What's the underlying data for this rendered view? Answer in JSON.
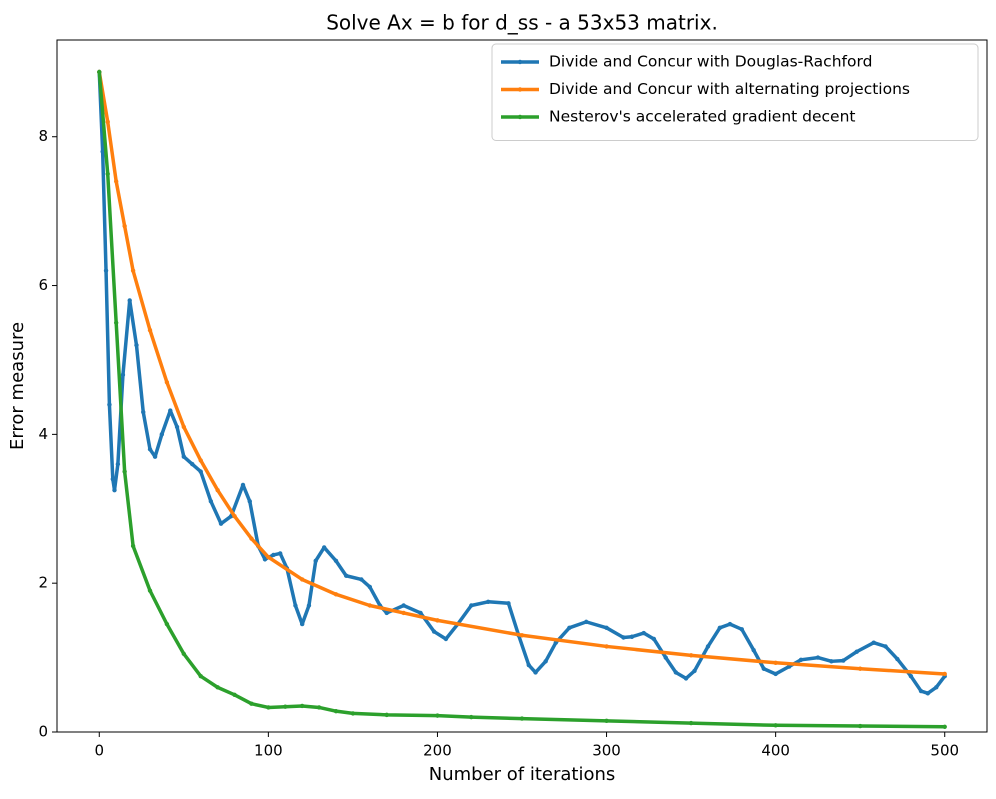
{
  "chart_data": {
    "type": "line",
    "title": "Solve Ax = b for d_ss - a 53x53 matrix.",
    "x_label": "Number of iterations",
    "y_label": "Error measure",
    "xlim": [
      -25,
      525
    ],
    "ylim": [
      0,
      9.3
    ],
    "xticks": [
      0,
      100,
      200,
      300,
      400,
      500
    ],
    "yticks": [
      0,
      2,
      4,
      6,
      8
    ],
    "grid": false,
    "legend": "upper right",
    "series": [
      {
        "name": "Divide and Concur with Douglas-Rachford",
        "color": "#1f77b4",
        "x": [
          0,
          2,
          4,
          6,
          8,
          9,
          11,
          14,
          18,
          22,
          26,
          30,
          33,
          37,
          42,
          46,
          50,
          55,
          60,
          66,
          72,
          78,
          85,
          89,
          94,
          98,
          103,
          107,
          111,
          116,
          120,
          124,
          128,
          133,
          140,
          146,
          155,
          160,
          166,
          170,
          180,
          190,
          198,
          205,
          212,
          220,
          230,
          242,
          248,
          254,
          258,
          264,
          270,
          278,
          288,
          300,
          310,
          315,
          322,
          328,
          335,
          341,
          347,
          352,
          360,
          367,
          373,
          380,
          387,
          393,
          400,
          408,
          415,
          425,
          433,
          440,
          448,
          458,
          465,
          472,
          480,
          486,
          490,
          495,
          500
        ],
        "values": [
          8.87,
          7.8,
          6.2,
          4.4,
          3.4,
          3.25,
          3.6,
          4.8,
          5.8,
          5.2,
          4.3,
          3.8,
          3.7,
          4.0,
          4.32,
          4.1,
          3.7,
          3.6,
          3.5,
          3.1,
          2.8,
          2.9,
          3.32,
          3.1,
          2.5,
          2.32,
          2.38,
          2.4,
          2.2,
          1.7,
          1.45,
          1.7,
          2.3,
          2.48,
          2.3,
          2.1,
          2.05,
          1.95,
          1.7,
          1.6,
          1.7,
          1.6,
          1.35,
          1.25,
          1.45,
          1.7,
          1.75,
          1.73,
          1.3,
          0.9,
          0.8,
          0.95,
          1.2,
          1.4,
          1.48,
          1.4,
          1.27,
          1.28,
          1.33,
          1.25,
          1.0,
          0.8,
          0.72,
          0.82,
          1.15,
          1.4,
          1.45,
          1.38,
          1.1,
          0.85,
          0.78,
          0.88,
          0.97,
          1.0,
          0.95,
          0.96,
          1.08,
          1.2,
          1.15,
          0.98,
          0.75,
          0.55,
          0.52,
          0.6,
          0.75
        ]
      },
      {
        "name": "Divide and Concur with alternating projections",
        "color": "#ff7f0e",
        "x": [
          0,
          5,
          10,
          15,
          20,
          30,
          40,
          50,
          60,
          70,
          80,
          90,
          100,
          120,
          140,
          160,
          180,
          200,
          250,
          300,
          350,
          400,
          450,
          500
        ],
        "values": [
          8.87,
          8.2,
          7.4,
          6.8,
          6.2,
          5.4,
          4.7,
          4.1,
          3.65,
          3.25,
          2.9,
          2.6,
          2.35,
          2.05,
          1.85,
          1.7,
          1.6,
          1.5,
          1.3,
          1.15,
          1.03,
          0.93,
          0.85,
          0.78
        ]
      },
      {
        "name": "Nesterov's accelerated gradient decent",
        "color": "#2ca02c",
        "x": [
          0,
          5,
          10,
          15,
          20,
          30,
          40,
          50,
          60,
          70,
          80,
          90,
          100,
          110,
          120,
          130,
          140,
          150,
          170,
          200,
          220,
          250,
          300,
          350,
          400,
          450,
          500
        ],
        "values": [
          8.87,
          7.5,
          5.5,
          3.5,
          2.5,
          1.9,
          1.45,
          1.05,
          0.75,
          0.6,
          0.5,
          0.38,
          0.33,
          0.34,
          0.35,
          0.33,
          0.28,
          0.25,
          0.23,
          0.22,
          0.2,
          0.18,
          0.15,
          0.12,
          0.09,
          0.08,
          0.07
        ]
      }
    ]
  }
}
